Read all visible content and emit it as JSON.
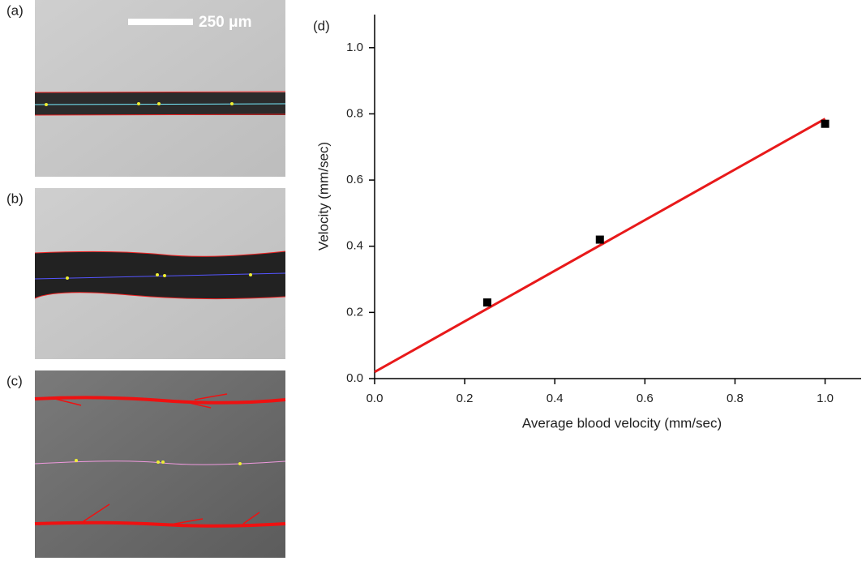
{
  "panels": {
    "labels": [
      "(a)",
      "(b)",
      "(c)"
    ],
    "scale_bar": "250 μm"
  },
  "chart_data": {
    "type": "scatter",
    "panel_label": "(d)",
    "xlabel": "Average blood velocity (mm/sec)",
    "ylabel": "Velocity (mm/sec)",
    "x": [
      0.25,
      0.5,
      1.0
    ],
    "values": [
      0.23,
      0.42,
      0.77
    ],
    "color": "#000000",
    "fit": {
      "x": [
        0,
        1.0
      ],
      "values": [
        0.02,
        0.785
      ],
      "color": "#e8191a"
    },
    "xlim": [
      0,
      1.08
    ],
    "ylim": [
      0,
      1.1
    ],
    "xticks": [
      {
        "value": 0,
        "label": "0.0"
      },
      0.2,
      0.4,
      0.6,
      0.8,
      {
        "value": 1,
        "label": "1.0"
      }
    ],
    "yticks": [
      {
        "value": 0,
        "label": "0.0"
      },
      0.2,
      0.4,
      0.6,
      0.8,
      {
        "value": 1,
        "label": "1.0"
      }
    ]
  }
}
